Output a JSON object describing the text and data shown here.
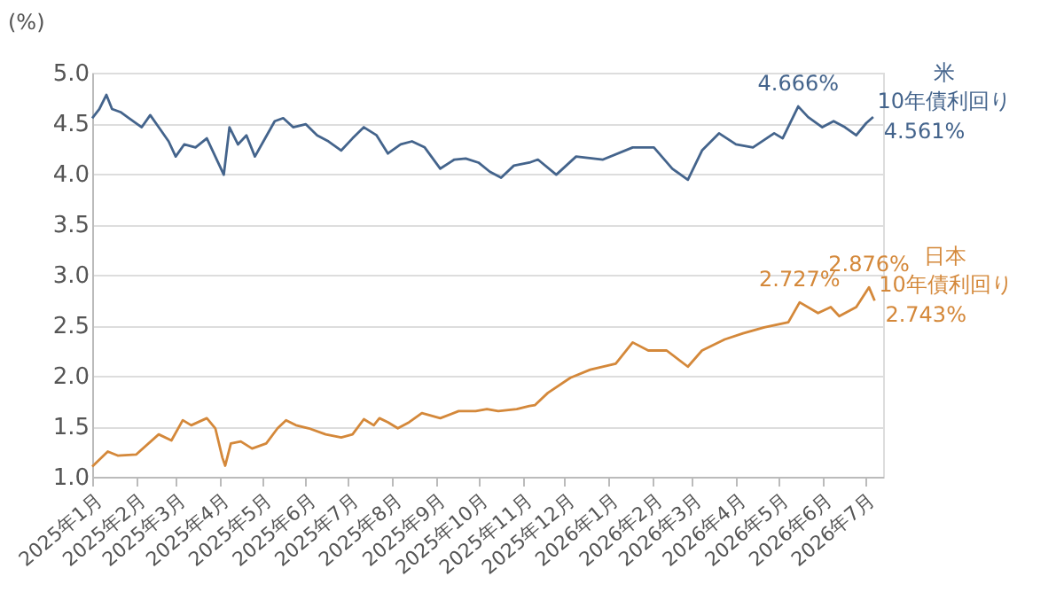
{
  "chart_data": {
    "type": "line",
    "ylabel": "(%)",
    "xlim": [
      "2025-01-01",
      "2026-07-14"
    ],
    "ylim": [
      1.0,
      5.0
    ],
    "yticks": [
      {
        "value": 1.0,
        "label": "1.0"
      },
      {
        "value": 1.5,
        "label": "1.5"
      },
      {
        "value": 2.0,
        "label": "2.0"
      },
      {
        "value": 2.5,
        "label": "2.5"
      },
      {
        "value": 3.0,
        "label": "3.0"
      },
      {
        "value": 3.5,
        "label": "3.5"
      },
      {
        "value": 4.0,
        "label": "4.0"
      },
      {
        "value": 4.5,
        "label": "4.5"
      },
      {
        "value": 5.0,
        "label": "5.0"
      }
    ],
    "xticks": [
      {
        "value": "2025-01",
        "label": "2025年1月"
      },
      {
        "value": "2025-02",
        "label": "2025年2月"
      },
      {
        "value": "2025-03",
        "label": "2025年3月"
      },
      {
        "value": "2025-04",
        "label": "2025年4月"
      },
      {
        "value": "2025-05",
        "label": "2025年5月"
      },
      {
        "value": "2025-06",
        "label": "2025年6月"
      },
      {
        "value": "2025-07",
        "label": "2025年7月"
      },
      {
        "value": "2025-08",
        "label": "2025年8月"
      },
      {
        "value": "2025-09",
        "label": "2025年9月"
      },
      {
        "value": "2025-10",
        "label": "2025年10月"
      },
      {
        "value": "2025-11",
        "label": "2025年11月"
      },
      {
        "value": "2025-12",
        "label": "2025年12月"
      },
      {
        "value": "2026-01",
        "label": "2026年1月"
      },
      {
        "value": "2026-02",
        "label": "2026年2月"
      },
      {
        "value": "2026-03",
        "label": "2026年3月"
      },
      {
        "value": "2026-04",
        "label": "2026年4月"
      },
      {
        "value": "2026-05",
        "label": "2026年5月"
      },
      {
        "value": "2026-06",
        "label": "2026年6月"
      },
      {
        "value": "2026-07",
        "label": "2026年7月"
      }
    ],
    "grid": "y",
    "legend": false,
    "line_style": "solid",
    "marker": "none",
    "series": [
      {
        "name": "米 10年債利回り",
        "color": "#44648c",
        "x": [
          "2025-01-01",
          "2025-01-06",
          "2025-01-11",
          "2025-01-15",
          "2025-01-21",
          "2025-01-27",
          "2025-02-05",
          "2025-02-11",
          "2025-02-17",
          "2025-02-24",
          "2025-03-01",
          "2025-03-07",
          "2025-03-15",
          "2025-03-23",
          "2025-04-04",
          "2025-04-08",
          "2025-04-14",
          "2025-04-20",
          "2025-04-26",
          "2025-05-02",
          "2025-05-10",
          "2025-05-16",
          "2025-05-23",
          "2025-06-01",
          "2025-06-09",
          "2025-06-17",
          "2025-06-26",
          "2025-07-04",
          "2025-07-12",
          "2025-07-21",
          "2025-07-29",
          "2025-08-07",
          "2025-08-15",
          "2025-08-24",
          "2025-09-04",
          "2025-09-14",
          "2025-09-22",
          "2025-10-01",
          "2025-10-09",
          "2025-10-17",
          "2025-10-26",
          "2025-11-06",
          "2025-11-12",
          "2025-11-25",
          "2025-12-09",
          "2025-12-28",
          "2026-01-18",
          "2026-02-02",
          "2026-02-15",
          "2026-02-26",
          "2026-03-08",
          "2026-03-20",
          "2026-04-01",
          "2026-04-13",
          "2026-04-28",
          "2026-05-04",
          "2026-05-15",
          "2026-05-22",
          "2026-06-01",
          "2026-06-09",
          "2026-06-17",
          "2026-06-25",
          "2026-07-02",
          "2026-07-07"
        ],
        "value_labels": [
          null,
          null,
          null,
          null,
          null,
          null,
          null,
          null,
          null,
          null,
          null,
          null,
          null,
          null,
          null,
          null,
          null,
          null,
          null,
          null,
          null,
          null,
          null,
          null,
          null,
          null,
          null,
          null,
          null,
          null,
          null,
          null,
          null,
          null,
          null,
          null,
          null,
          null,
          null,
          null,
          null,
          null,
          null,
          null,
          null,
          null,
          null,
          null,
          null,
          null,
          null,
          null,
          null,
          null,
          null,
          null,
          "4.666%",
          null,
          null,
          null,
          null,
          null,
          null,
          "4.561%"
        ],
        "values": [
          4.55,
          4.64,
          4.78,
          4.64,
          4.61,
          4.55,
          4.46,
          4.58,
          4.46,
          4.32,
          4.17,
          4.29,
          4.26,
          4.35,
          3.99,
          4.46,
          4.29,
          4.38,
          4.17,
          4.32,
          4.52,
          4.55,
          4.46,
          4.49,
          4.38,
          4.32,
          4.23,
          4.35,
          4.46,
          4.38,
          4.2,
          4.29,
          4.32,
          4.26,
          4.05,
          4.14,
          4.15,
          4.11,
          4.02,
          3.96,
          4.08,
          4.11,
          4.14,
          3.99,
          4.17,
          4.14,
          4.26,
          4.26,
          4.05,
          3.94,
          4.23,
          4.4,
          4.29,
          4.26,
          4.4,
          4.35,
          4.666,
          4.56,
          4.46,
          4.52,
          4.46,
          4.38,
          4.5,
          4.561
        ]
      },
      {
        "name": "日本 10年債利回り",
        "color": "#d4883a",
        "x": [
          "2025-01-01",
          "2025-01-12",
          "2025-01-19",
          "2025-02-01",
          "2025-02-17",
          "2025-02-26",
          "2025-03-06",
          "2025-03-12",
          "2025-03-23",
          "2025-03-29",
          "2025-04-03",
          "2025-04-05",
          "2025-04-09",
          "2025-04-16",
          "2025-04-24",
          "2025-05-04",
          "2025-05-12",
          "2025-05-18",
          "2025-05-25",
          "2025-06-03",
          "2025-06-15",
          "2025-06-26",
          "2025-07-04",
          "2025-07-12",
          "2025-07-19",
          "2025-07-23",
          "2025-07-29",
          "2025-08-05",
          "2025-08-13",
          "2025-08-22",
          "2025-09-04",
          "2025-09-17",
          "2025-09-29",
          "2025-10-07",
          "2025-10-15",
          "2025-10-28",
          "2025-11-06",
          "2025-11-10",
          "2025-11-19",
          "2025-12-05",
          "2025-12-19",
          "2026-01-06",
          "2026-01-18",
          "2026-01-29",
          "2026-02-11",
          "2026-02-26",
          "2026-03-08",
          "2026-03-24",
          "2026-04-06",
          "2026-04-21",
          "2026-05-08",
          "2026-05-16",
          "2026-05-29",
          "2026-06-07",
          "2026-06-13",
          "2026-06-25",
          "2026-07-04",
          "2026-07-08"
        ],
        "value_labels": [
          null,
          null,
          null,
          null,
          null,
          null,
          null,
          null,
          null,
          null,
          null,
          null,
          null,
          null,
          null,
          null,
          null,
          null,
          null,
          null,
          null,
          null,
          null,
          null,
          null,
          null,
          null,
          null,
          null,
          null,
          null,
          null,
          null,
          null,
          null,
          null,
          null,
          null,
          null,
          null,
          null,
          null,
          null,
          null,
          null,
          null,
          null,
          null,
          null,
          null,
          null,
          "2.727%",
          null,
          null,
          null,
          null,
          "2.876%",
          "2.743%"
        ],
        "values": [
          1.1,
          1.25,
          1.21,
          1.22,
          1.42,
          1.36,
          1.56,
          1.51,
          1.58,
          1.48,
          1.19,
          1.11,
          1.33,
          1.35,
          1.28,
          1.33,
          1.48,
          1.56,
          1.51,
          1.48,
          1.42,
          1.39,
          1.42,
          1.57,
          1.51,
          1.58,
          1.54,
          1.48,
          1.54,
          1.63,
          1.58,
          1.65,
          1.65,
          1.67,
          1.65,
          1.67,
          1.7,
          1.71,
          1.83,
          1.98,
          2.06,
          2.12,
          2.33,
          2.25,
          2.25,
          2.09,
          2.25,
          2.36,
          2.42,
          2.48,
          2.53,
          2.727,
          2.62,
          2.68,
          2.59,
          2.68,
          2.876,
          2.743
        ]
      }
    ]
  }
}
